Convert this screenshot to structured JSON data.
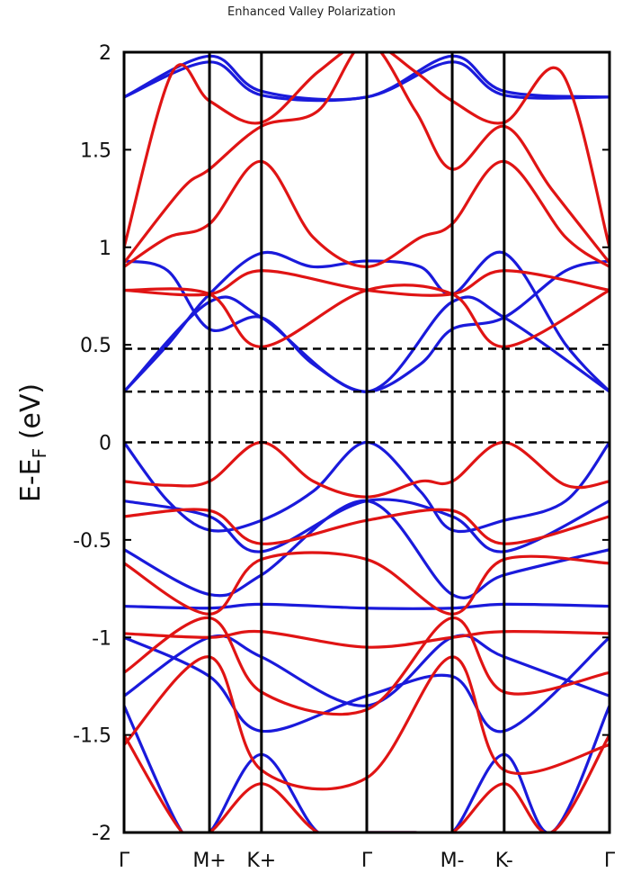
{
  "chart_data": {
    "type": "line",
    "title": "Enhanced Valley Polarization",
    "ylabel_main": "E-E",
    "ylabel_sub": "F",
    "ylabel_unit": " (eV)",
    "ylim": [
      -2,
      2
    ],
    "yticks": [
      {
        "value": 2,
        "label": "2"
      },
      {
        "value": 1.5,
        "label": "1.5"
      },
      {
        "value": 1,
        "label": "1"
      },
      {
        "value": 0.5,
        "label": "0.5"
      },
      {
        "value": 0,
        "label": "0"
      },
      {
        "value": -0.5,
        "label": "-0.5"
      },
      {
        "value": -1,
        "label": "-1"
      },
      {
        "value": -1.5,
        "label": "-1.5"
      },
      {
        "value": -2,
        "label": "-2"
      }
    ],
    "xlim": [
      0,
      1
    ],
    "kpoints": [
      {
        "label": "Γ",
        "x": 0.0
      },
      {
        "label": "M+",
        "x": 0.176
      },
      {
        "label": "K+",
        "x": 0.283
      },
      {
        "label": "Γ",
        "x": 0.5
      },
      {
        "label": "M-",
        "x": 0.676
      },
      {
        "label": "K-",
        "x": 0.783
      },
      {
        "label": "Γ",
        "x": 1.0
      }
    ],
    "dashed_levels": [
      0.48,
      0.26,
      0.0
    ],
    "colors": {
      "spin_up": "#e01414",
      "spin_down": "#1a1adb",
      "axis": "#000000"
    },
    "series": [
      {
        "spin": "blue",
        "x": [
          0,
          0.176,
          0.283,
          0.5,
          0.676,
          0.783,
          1
        ],
        "y": [
          1.77,
          1.98,
          1.8,
          1.77,
          1.98,
          1.8,
          1.77
        ]
      },
      {
        "spin": "blue",
        "x": [
          0,
          0.176,
          0.283,
          0.5,
          0.676,
          0.783,
          1
        ],
        "y": [
          1.77,
          1.95,
          1.78,
          1.77,
          1.95,
          1.78,
          1.77
        ]
      },
      {
        "spin": "blue",
        "x": [
          0,
          0.09,
          0.176,
          0.283,
          0.39,
          0.5,
          0.61,
          0.676,
          0.783,
          0.91,
          1
        ],
        "y": [
          0.93,
          0.88,
          0.58,
          0.64,
          0.4,
          0.26,
          0.4,
          0.58,
          0.64,
          0.88,
          0.93
        ]
      },
      {
        "spin": "blue",
        "x": [
          0,
          0.09,
          0.176,
          0.283,
          0.39,
          0.5,
          0.61,
          0.676,
          0.783,
          0.91,
          1
        ],
        "y": [
          0.26,
          0.5,
          0.76,
          0.97,
          0.9,
          0.93,
          0.9,
          0.76,
          0.97,
          0.5,
          0.26
        ]
      },
      {
        "spin": "blue",
        "x": [
          0,
          0.176,
          0.283,
          0.5,
          0.676,
          0.783,
          1
        ],
        "y": [
          0.26,
          0.72,
          0.64,
          0.26,
          0.72,
          0.64,
          0.26
        ]
      },
      {
        "spin": "blue",
        "x": [
          0,
          0.09,
          0.176,
          0.283,
          0.39,
          0.5,
          0.61,
          0.676,
          0.783,
          0.91,
          1
        ],
        "y": [
          0.0,
          -0.3,
          -0.45,
          -0.4,
          -0.25,
          0.0,
          -0.25,
          -0.45,
          -0.4,
          -0.3,
          0.0
        ]
      },
      {
        "spin": "blue",
        "x": [
          0,
          0.176,
          0.283,
          0.5,
          0.676,
          0.783,
          1
        ],
        "y": [
          -0.3,
          -0.38,
          -0.56,
          -0.3,
          -0.38,
          -0.56,
          -0.3
        ]
      },
      {
        "spin": "blue",
        "x": [
          0,
          0.176,
          0.283,
          0.5,
          0.676,
          0.783,
          1
        ],
        "y": [
          -0.55,
          -0.78,
          -0.68,
          -0.3,
          -0.78,
          -0.68,
          -0.55
        ]
      },
      {
        "spin": "blue",
        "x": [
          0,
          0.176,
          0.283,
          0.5,
          0.676,
          0.783,
          1
        ],
        "y": [
          -0.84,
          -0.85,
          -0.83,
          -0.85,
          -0.85,
          -0.83,
          -0.84
        ]
      },
      {
        "spin": "blue",
        "x": [
          0,
          0.176,
          0.283,
          0.5,
          0.676,
          0.783,
          1
        ],
        "y": [
          -1.0,
          -1.2,
          -1.48,
          -1.3,
          -1.2,
          -1.48,
          -1.0
        ]
      },
      {
        "spin": "blue",
        "x": [
          0,
          0.176,
          0.283,
          0.5,
          0.676,
          0.783,
          1
        ],
        "y": [
          -1.3,
          -1.0,
          -1.1,
          -1.35,
          -1.0,
          -1.1,
          -1.3
        ]
      },
      {
        "spin": "blue",
        "x": [
          0,
          0.12,
          0.176,
          0.283,
          0.4,
          0.5,
          0.6,
          0.676,
          0.783,
          0.88,
          1
        ],
        "y": [
          -1.35,
          -2.0,
          -2.0,
          -1.6,
          -2.0,
          -2.0,
          -2.0,
          -2.0,
          -1.6,
          -2.0,
          -1.35
        ]
      },
      {
        "spin": "red",
        "x": [
          0,
          0.09,
          0.176,
          0.283,
          0.39,
          0.5,
          0.61,
          0.676,
          0.783,
          0.91,
          1
        ],
        "y": [
          0.9,
          1.05,
          1.12,
          1.44,
          1.05,
          0.9,
          1.05,
          1.12,
          1.44,
          1.05,
          0.9
        ]
      },
      {
        "spin": "red",
        "x": [
          0,
          0.176,
          0.283,
          0.5,
          0.676,
          0.783,
          1
        ],
        "y": [
          0.78,
          0.76,
          0.49,
          0.78,
          0.76,
          0.49,
          0.78
        ]
      },
      {
        "spin": "red",
        "x": [
          0,
          0.176,
          0.283,
          0.5,
          0.676,
          0.783,
          1
        ],
        "y": [
          0.78,
          0.76,
          0.88,
          0.78,
          0.76,
          0.88,
          0.78
        ]
      },
      {
        "spin": "red",
        "x": [
          0,
          0.12,
          0.176,
          0.283,
          0.4,
          0.5,
          0.6,
          0.676,
          0.783,
          0.88,
          1
        ],
        "y": [
          0.92,
          1.3,
          1.4,
          1.62,
          1.7,
          2.05,
          1.7,
          1.4,
          1.62,
          1.3,
          0.92
        ]
      },
      {
        "spin": "red",
        "x": [
          0,
          0.1,
          0.176,
          0.283,
          0.4,
          0.5,
          0.6,
          0.676,
          0.783,
          0.9,
          1
        ],
        "y": [
          1.0,
          1.9,
          1.75,
          1.64,
          1.9,
          2.05,
          1.9,
          1.75,
          1.64,
          1.9,
          1.0
        ]
      },
      {
        "spin": "red",
        "x": [
          0,
          0.09,
          0.176,
          0.283,
          0.39,
          0.5,
          0.61,
          0.676,
          0.783,
          0.91,
          1
        ],
        "y": [
          -0.2,
          -0.22,
          -0.2,
          0.0,
          -0.2,
          -0.28,
          -0.2,
          -0.2,
          0.0,
          -0.22,
          -0.2
        ]
      },
      {
        "spin": "red",
        "x": [
          0,
          0.176,
          0.283,
          0.5,
          0.676,
          0.783,
          1
        ],
        "y": [
          -0.38,
          -0.35,
          -0.52,
          -0.4,
          -0.35,
          -0.52,
          -0.38
        ]
      },
      {
        "spin": "red",
        "x": [
          0,
          0.176,
          0.283,
          0.5,
          0.676,
          0.783,
          1
        ],
        "y": [
          -0.62,
          -0.88,
          -0.6,
          -0.6,
          -0.88,
          -0.6,
          -0.62
        ]
      },
      {
        "spin": "red",
        "x": [
          0,
          0.176,
          0.283,
          0.5,
          0.676,
          0.783,
          1
        ],
        "y": [
          -0.98,
          -1.0,
          -0.97,
          -1.05,
          -1.0,
          -0.97,
          -0.98
        ]
      },
      {
        "spin": "red",
        "x": [
          0,
          0.176,
          0.283,
          0.5,
          0.676,
          0.783,
          1
        ],
        "y": [
          -1.18,
          -0.9,
          -1.28,
          -1.37,
          -0.9,
          -1.28,
          -1.18
        ]
      },
      {
        "spin": "red",
        "x": [
          0,
          0.176,
          0.283,
          0.5,
          0.676,
          0.783,
          1
        ],
        "y": [
          -1.55,
          -1.1,
          -1.68,
          -1.72,
          -1.1,
          -1.68,
          -1.55
        ]
      },
      {
        "spin": "red",
        "x": [
          0,
          0.12,
          0.176,
          0.283,
          0.4,
          0.5,
          0.6,
          0.676,
          0.783,
          0.88,
          1
        ],
        "y": [
          -1.5,
          -2.0,
          -2.0,
          -1.75,
          -2.0,
          -2.0,
          -2.0,
          -2.0,
          -1.75,
          -2.0,
          -1.5
        ]
      }
    ]
  }
}
